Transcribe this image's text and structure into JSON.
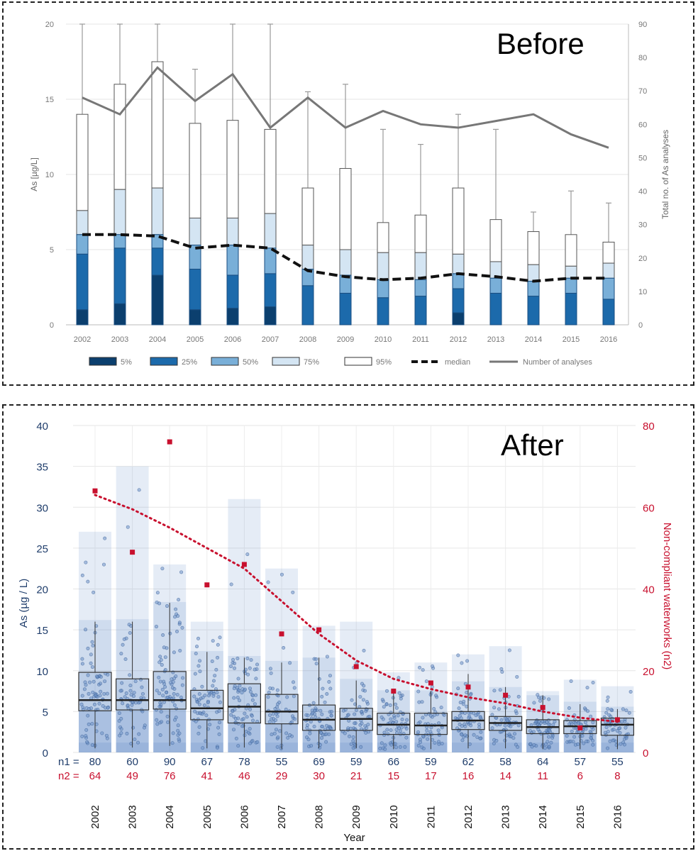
{
  "before": {
    "label": "Before",
    "chart_data": {
      "type": "bar",
      "years": [
        "2002",
        "2003",
        "2004",
        "2005",
        "2006",
        "2007",
        "2008",
        "2009",
        "2010",
        "2011",
        "2012",
        "2013",
        "2014",
        "2015",
        "2016"
      ],
      "ylabel": "As [µg/L]",
      "y2label": "Total no. of As analyses",
      "ylim": [
        0,
        20
      ],
      "y2lim": [
        0,
        90
      ],
      "yticks": [
        "0",
        "5",
        "10",
        "15",
        "20"
      ],
      "y2ticks": [
        "0",
        "10",
        "20",
        "30",
        "40",
        "50",
        "60",
        "70",
        "80",
        "90"
      ],
      "p5": [
        1.0,
        1.4,
        3.3,
        1.0,
        1.1,
        1.2,
        0,
        0,
        0,
        0,
        0.8,
        0,
        0,
        0,
        0
      ],
      "p25": [
        4.7,
        5.1,
        5.1,
        3.7,
        3.3,
        3.4,
        2.6,
        2.1,
        1.8,
        1.9,
        2.4,
        2.1,
        1.9,
        2.1,
        1.7
      ],
      "p50": [
        6.0,
        6.0,
        6.0,
        5.3,
        5.3,
        5.1,
        3.7,
        3.3,
        3.0,
        3.0,
        3.4,
        3.1,
        2.9,
        3.1,
        3.1
      ],
      "p75": [
        7.6,
        9.0,
        9.1,
        7.1,
        7.1,
        7.4,
        5.3,
        5.0,
        4.8,
        4.8,
        4.7,
        4.2,
        4.0,
        3.9,
        4.1
      ],
      "p95": [
        14.0,
        16.0,
        17.5,
        13.4,
        13.6,
        13.0,
        9.1,
        10.4,
        6.8,
        7.3,
        9.1,
        7.0,
        6.2,
        6.0,
        5.5
      ],
      "max": [
        20,
        20,
        20,
        17.0,
        20,
        20,
        15.5,
        16.0,
        13.0,
        12.0,
        14.0,
        13.0,
        7.5,
        8.9,
        8.1
      ],
      "median": [
        6.0,
        6.0,
        5.9,
        5.1,
        5.3,
        5.1,
        3.6,
        3.2,
        3.0,
        3.1,
        3.4,
        3.2,
        2.9,
        3.1,
        3.1
      ],
      "analyses": [
        68,
        63,
        77,
        67,
        75,
        59,
        68,
        59,
        64,
        60,
        59,
        61,
        63,
        57,
        53
      ],
      "legend": [
        "5%",
        "25%",
        "50%",
        "75%",
        "95%",
        "median",
        "Number of analyses"
      ],
      "colors": {
        "p5": "#0b3f6e",
        "p25": "#1c6aab",
        "p50": "#79afd8",
        "p75": "#d4e5f3",
        "p95": "#ffffff",
        "median": "#111111",
        "analyses": "#777777"
      }
    }
  },
  "after": {
    "label": "After",
    "chart_data": {
      "type": "bar",
      "years": [
        "2002",
        "2003",
        "2004",
        "2005",
        "2006",
        "2007",
        "2008",
        "2009",
        "2010",
        "2011",
        "2012",
        "2013",
        "2014",
        "2015",
        "2016"
      ],
      "ylabel": "As (µg / L)",
      "y2label": "Non-compliant waterworks (n2)",
      "xlabel": "Year",
      "ylim": [
        0,
        40
      ],
      "y2lim": [
        0,
        80
      ],
      "yticks": [
        "0",
        "5",
        "10",
        "15",
        "20",
        "25",
        "30",
        "35",
        "40"
      ],
      "y2ticks": [
        "0",
        "20",
        "40",
        "60",
        "80"
      ],
      "n1_label": "n1 =",
      "n2_label": "n2 =",
      "n1": [
        "80",
        "60",
        "90",
        "67",
        "78",
        "55",
        "69",
        "59",
        "66",
        "59",
        "62",
        "58",
        "64",
        "57",
        "55"
      ],
      "n2": [
        "64",
        "49",
        "76",
        "41",
        "46",
        "29",
        "30",
        "21",
        "15",
        "17",
        "16",
        "14",
        "11",
        "6",
        "8"
      ],
      "bar_max": [
        27,
        35,
        23,
        16,
        31,
        22.5,
        15.5,
        16,
        9.8,
        11,
        12,
        13,
        7.5,
        8.9,
        8.1
      ],
      "bar_p95": [
        16.2,
        16.3,
        18.4,
        12.4,
        11.8,
        11.2,
        11.6,
        9.0,
        7.6,
        7.6,
        8.7,
        8.0,
        7.0,
        6.2,
        5.6
      ],
      "q1": [
        5.1,
        5.2,
        5.3,
        4.0,
        3.6,
        3.5,
        2.7,
        2.7,
        2.2,
        2.2,
        2.8,
        2.7,
        2.3,
        2.3,
        2.1
      ],
      "median": [
        6.4,
        6.4,
        6.4,
        5.4,
        5.6,
        5.0,
        4.0,
        4.1,
        3.4,
        3.3,
        3.9,
        3.6,
        3.1,
        3.2,
        3.4
      ],
      "q3": [
        9.8,
        9.0,
        9.9,
        7.6,
        8.4,
        7.1,
        5.8,
        5.4,
        4.8,
        4.8,
        5.0,
        4.4,
        4.0,
        3.9,
        4.2
      ],
      "wlo": [
        0.5,
        0.6,
        0.8,
        0.5,
        0.6,
        0.4,
        0.5,
        0.5,
        0.4,
        0.4,
        0.5,
        0.5,
        0.4,
        0.4,
        0.4
      ],
      "whi": [
        16.0,
        16.0,
        18.3,
        12.3,
        11.6,
        11.0,
        11.6,
        8.8,
        7.5,
        7.5,
        9.6,
        8.0,
        7.0,
        5.9,
        5.3
      ],
      "noncompliant": [
        64,
        49,
        76,
        41,
        46,
        29,
        30,
        21,
        15,
        17,
        16,
        14,
        11,
        6,
        8
      ],
      "trend": [
        63,
        59.5,
        55,
        50,
        45,
        37,
        29,
        22.5,
        18,
        15.5,
        13.5,
        12,
        10,
        8.5,
        7.5
      ],
      "colors": {
        "axis_left": "#1f3d6b",
        "axis_right": "#c8102e",
        "bar": "#5b86c5",
        "point": "#6f94c9",
        "box": "#333333",
        "trend": "#c8102e"
      }
    }
  }
}
